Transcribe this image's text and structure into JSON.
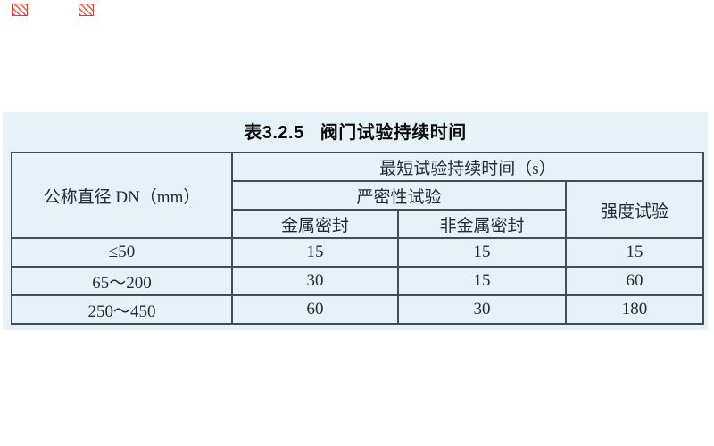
{
  "page": {
    "background": "#ffffff",
    "panel_background": "#e6f2f7",
    "border_color": "#454c54",
    "text_color": "#1e2a3a",
    "accent_red": "#e23b2e"
  },
  "icons": {
    "placeholder_1": "broken-image-marker",
    "placeholder_2": "broken-image-marker"
  },
  "caption": {
    "number": "表3.2.5",
    "text": "阀门试验持续时间"
  },
  "table": {
    "header": {
      "diameter": "公称直径 DN（mm）",
      "min_duration": "最短试验持续时间（s）",
      "tightness_test": "严密性试验",
      "strength_test": "强度试验",
      "metal_seal": "金属密封",
      "nonmetal_seal": "非金属密封"
    },
    "rows": [
      {
        "dn": "≤50",
        "metal_seal": "15",
        "nonmetal_seal": "15",
        "strength": "15"
      },
      {
        "dn": "65～200",
        "metal_seal": "30",
        "nonmetal_seal": "15",
        "strength": "60"
      },
      {
        "dn": "250～450",
        "metal_seal": "60",
        "nonmetal_seal": "30",
        "strength": "180"
      }
    ]
  }
}
